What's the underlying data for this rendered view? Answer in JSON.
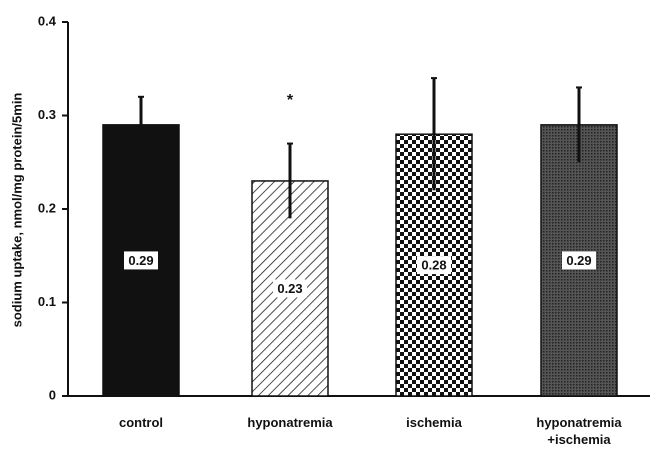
{
  "chart_data": {
    "type": "bar",
    "ylabel": "sodium uptake, nmol/mg protein/5min",
    "categories": [
      "control",
      "hyponatremia",
      "ischemia",
      "hyponatremia +ischemia"
    ],
    "values": [
      0.29,
      0.23,
      0.28,
      0.29
    ],
    "errors": [
      0.03,
      0.04,
      0.06,
      0.04
    ],
    "fills": [
      "solid",
      "hatch",
      "checker",
      "fine-checker"
    ],
    "annotations": [
      {
        "text": "*",
        "category": 1,
        "y": 0.32
      }
    ],
    "ylim": [
      0,
      0.4
    ],
    "yticks": [
      0,
      0.1,
      0.2,
      0.3,
      0.4
    ],
    "grid": false
  }
}
